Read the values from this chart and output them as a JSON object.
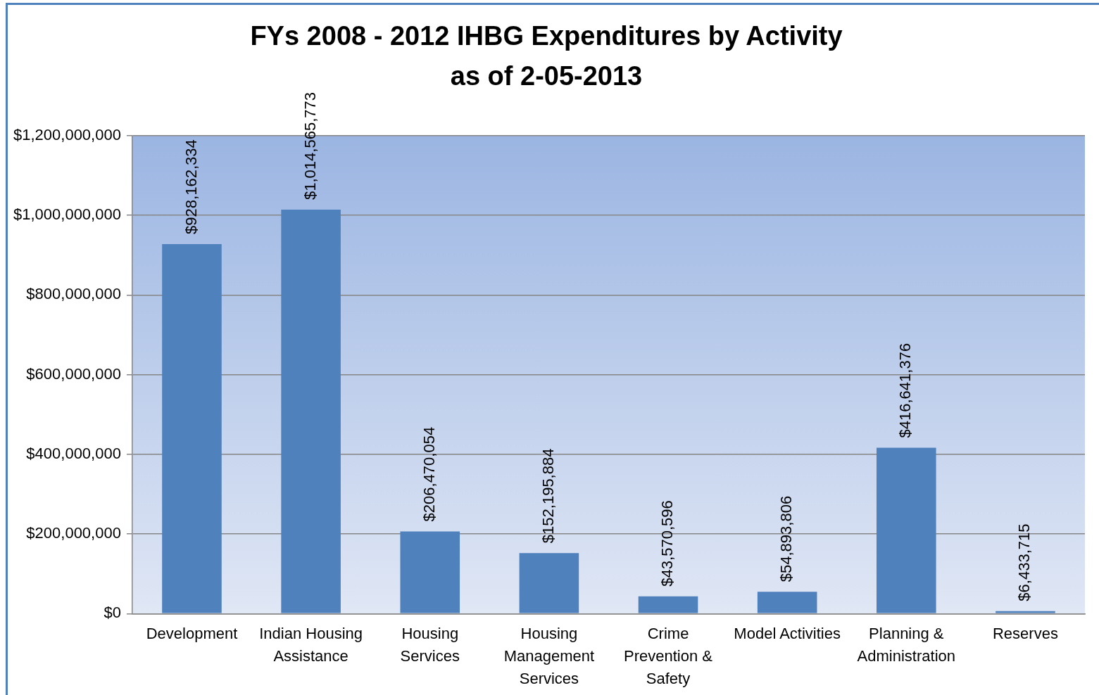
{
  "chart_data": {
    "type": "bar",
    "title": "FYs 2008 - 2012 IHBG Expenditures by Activity\nas of 2-05-2013",
    "categories": [
      "Development",
      "Indian Housing Assistance",
      "Housing Services",
      "Housing Management Services",
      "Crime Prevention & Safety",
      "Model Activities",
      "Planning & Administration",
      "Reserves"
    ],
    "values": [
      928162334,
      1014565773,
      206470054,
      152195884,
      43570596,
      54893806,
      416641376,
      6433715
    ],
    "value_labels": [
      "$928,162,334",
      "$1,014,565,773",
      "$206,470,054",
      "$152,195,884",
      "$43,570,596",
      "$54,893,806",
      "$416,641,376",
      "$6,433,715"
    ],
    "color": "#4f81bd",
    "ylim": [
      0,
      1200000000
    ],
    "yticks": [
      {
        "value": 0,
        "label": "$0"
      },
      {
        "value": 200000000,
        "label": "$200,000,000"
      },
      {
        "value": 400000000,
        "label": "$400,000,000"
      },
      {
        "value": 600000000,
        "label": "$600,000,000"
      },
      {
        "value": 800000000,
        "label": "$800,000,000"
      },
      {
        "value": 1000000000,
        "label": "$1,000,000,000"
      },
      {
        "value": 1200000000,
        "label": "$1,200,000,000"
      }
    ],
    "grid": "y",
    "legend": false
  }
}
